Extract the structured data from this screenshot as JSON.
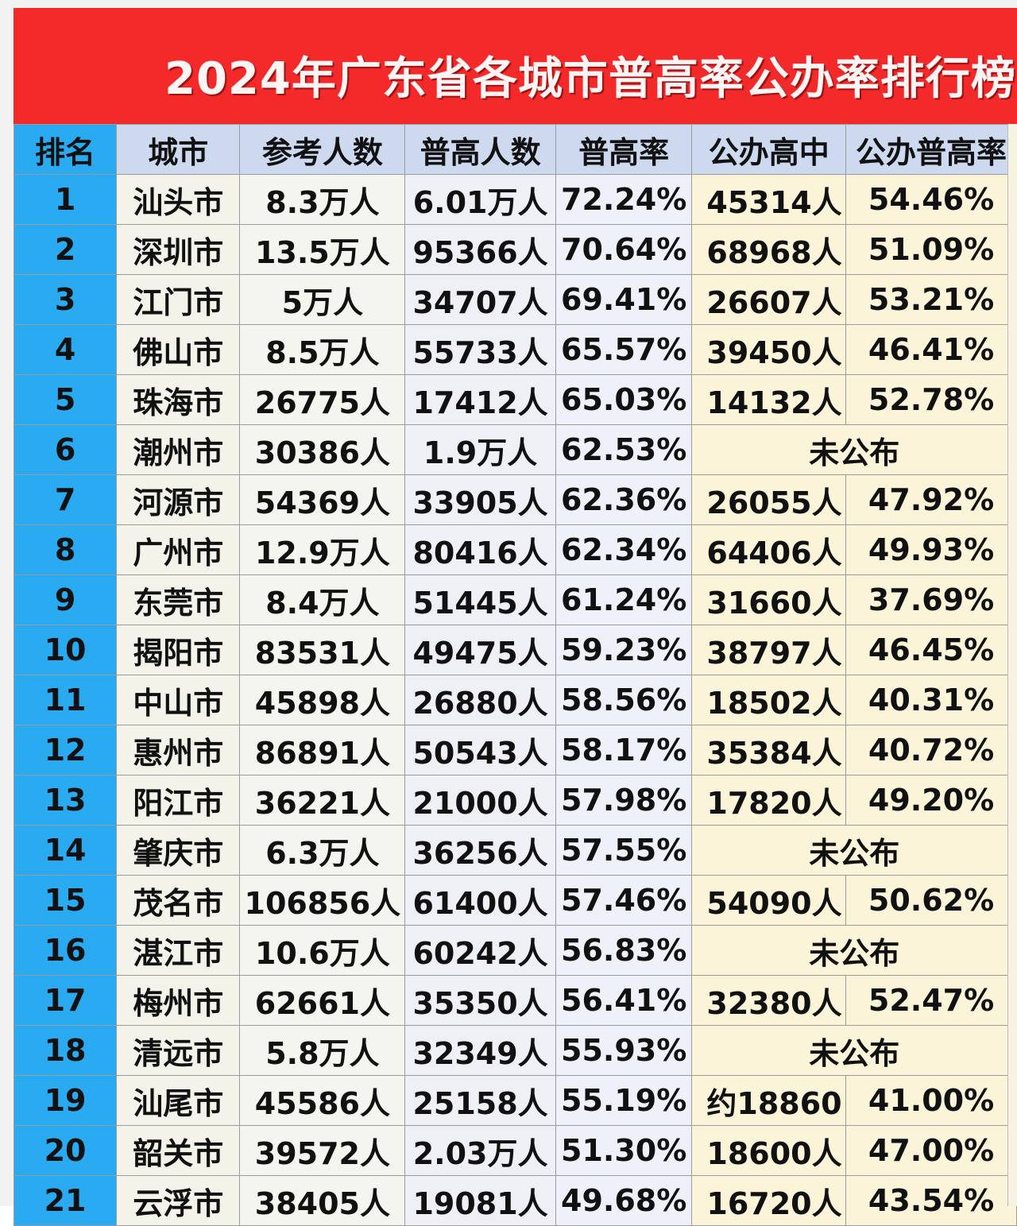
{
  "title": "2024年广东省各城市普高率公办率排行榜",
  "headers": [
    "排名",
    "城市",
    "参考人数",
    "普高人数",
    "普高率",
    "公办高中",
    "公办普高率"
  ],
  "rows": [
    {
      "rank": "1",
      "city": "汕头市",
      "exam": "8.3万人",
      "gen": "6.01万人",
      "rate": "72.24%",
      "pub": "45314人",
      "prate": "54.46%"
    },
    {
      "rank": "2",
      "city": "深圳市",
      "exam": "13.5万人",
      "gen": "95366人",
      "rate": "70.64%",
      "pub": "68968人",
      "prate": "51.09%"
    },
    {
      "rank": "3",
      "city": "江门市",
      "exam": "5万人",
      "gen": "34707人",
      "rate": "69.41%",
      "pub": "26607人",
      "prate": "53.21%"
    },
    {
      "rank": "4",
      "city": "佛山市",
      "exam": "8.5万人",
      "gen": "55733人",
      "rate": "65.57%",
      "pub": "39450人",
      "prate": "46.41%"
    },
    {
      "rank": "5",
      "city": "珠海市",
      "exam": "26775人",
      "gen": "17412人",
      "rate": "65.03%",
      "pub": "14132人",
      "prate": "52.78%"
    },
    {
      "rank": "6",
      "city": "潮州市",
      "exam": "30386人",
      "gen": "1.9万人",
      "rate": "62.53%",
      "not_published": "未公布"
    },
    {
      "rank": "7",
      "city": "河源市",
      "exam": "54369人",
      "gen": "33905人",
      "rate": "62.36%",
      "pub": "26055人",
      "prate": "47.92%"
    },
    {
      "rank": "8",
      "city": "广州市",
      "exam": "12.9万人",
      "gen": "80416人",
      "rate": "62.34%",
      "pub": "64406人",
      "prate": "49.93%"
    },
    {
      "rank": "9",
      "city": "东莞市",
      "exam": "8.4万人",
      "gen": "51445人",
      "rate": "61.24%",
      "pub": "31660人",
      "prate": "37.69%"
    },
    {
      "rank": "10",
      "city": "揭阳市",
      "exam": "83531人",
      "gen": "49475人",
      "rate": "59.23%",
      "pub": "38797人",
      "prate": "46.45%"
    },
    {
      "rank": "11",
      "city": "中山市",
      "exam": "45898人",
      "gen": "26880人",
      "rate": "58.56%",
      "pub": "18502人",
      "prate": "40.31%"
    },
    {
      "rank": "12",
      "city": "惠州市",
      "exam": "86891人",
      "gen": "50543人",
      "rate": "58.17%",
      "pub": "35384人",
      "prate": "40.72%"
    },
    {
      "rank": "13",
      "city": "阳江市",
      "exam": "36221人",
      "gen": "21000人",
      "rate": "57.98%",
      "pub": "17820人",
      "prate": "49.20%"
    },
    {
      "rank": "14",
      "city": "肇庆市",
      "exam": "6.3万人",
      "gen": "36256人",
      "rate": "57.55%",
      "not_published": "未公布"
    },
    {
      "rank": "15",
      "city": "茂名市",
      "exam": "106856人",
      "gen": "61400人",
      "rate": "57.46%",
      "pub": "54090人",
      "prate": "50.62%"
    },
    {
      "rank": "16",
      "city": "湛江市",
      "exam": "10.6万人",
      "gen": "60242人",
      "rate": "56.83%",
      "not_published": "未公布"
    },
    {
      "rank": "17",
      "city": "梅州市",
      "exam": "62661人",
      "gen": "35350人",
      "rate": "56.41%",
      "pub": "32380人",
      "prate": "52.47%"
    },
    {
      "rank": "18",
      "city": "清远市",
      "exam": "5.8万人",
      "gen": "32349人",
      "rate": "55.93%",
      "not_published": "未公布"
    },
    {
      "rank": "19",
      "city": "汕尾市",
      "exam": "45586人",
      "gen": "25158人",
      "rate": "55.19%",
      "pub": "约18860",
      "prate": "41.00%"
    },
    {
      "rank": "20",
      "city": "韶关市",
      "exam": "39572人",
      "gen": "2.03万人",
      "rate": "51.30%",
      "pub": "18600人",
      "prate": "47.00%"
    },
    {
      "rank": "21",
      "city": "云浮市",
      "exam": "38405人",
      "gen": "19081人",
      "rate": "49.68%",
      "pub": "16720人",
      "prate": "43.54%"
    }
  ]
}
